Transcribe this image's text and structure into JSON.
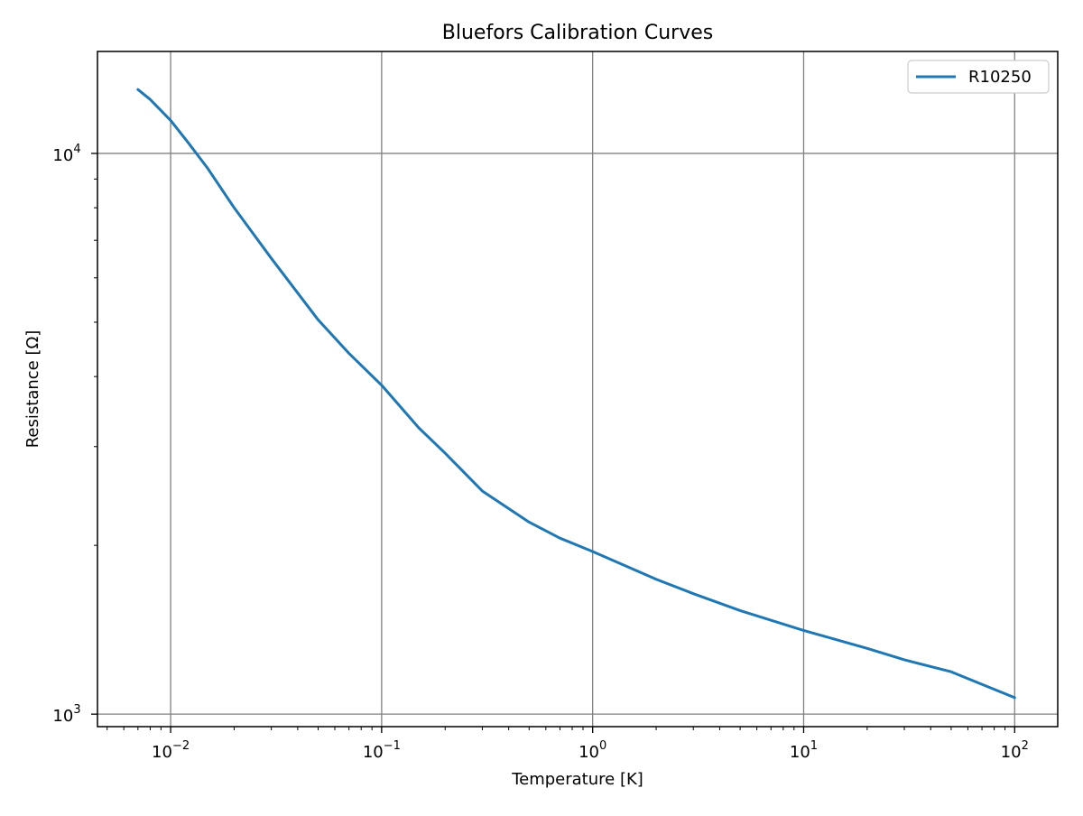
{
  "chart_data": {
    "type": "line",
    "title": "Bluefors Calibration Curves",
    "xlabel": "Temperature [K]",
    "ylabel": "Resistance [Ω]",
    "xscale": "log",
    "yscale": "log",
    "xlim": [
      0.0045,
      160
    ],
    "ylim": [
      950,
      15200
    ],
    "grid": true,
    "legend_position": "upper-right",
    "x_major_ticks": [
      {
        "value": 0.01,
        "base": "10",
        "exp": "−2"
      },
      {
        "value": 0.1,
        "base": "10",
        "exp": "−1"
      },
      {
        "value": 1,
        "base": "10",
        "exp": "0"
      },
      {
        "value": 10,
        "base": "10",
        "exp": "1"
      },
      {
        "value": 100,
        "base": "10",
        "exp": "2"
      }
    ],
    "y_major_ticks": [
      {
        "value": 1000,
        "base": "10",
        "exp": "3"
      },
      {
        "value": 10000,
        "base": "10",
        "exp": "4"
      }
    ],
    "colors": {
      "line": "#1f77b4",
      "grid": "#808080",
      "axes": "#000000"
    },
    "series": [
      {
        "name": "R10250",
        "x": [
          0.007,
          0.008,
          0.01,
          0.012,
          0.015,
          0.02,
          0.03,
          0.05,
          0.07,
          0.1,
          0.15,
          0.2,
          0.3,
          0.5,
          0.7,
          1,
          2,
          3,
          5,
          10,
          20,
          30,
          50,
          100
        ],
        "y": [
          13000,
          12480,
          11450,
          10500,
          9400,
          8000,
          6500,
          5050,
          4400,
          3860,
          3240,
          2920,
          2500,
          2200,
          2060,
          1950,
          1740,
          1640,
          1530,
          1410,
          1310,
          1250,
          1190,
          1070
        ]
      }
    ]
  }
}
